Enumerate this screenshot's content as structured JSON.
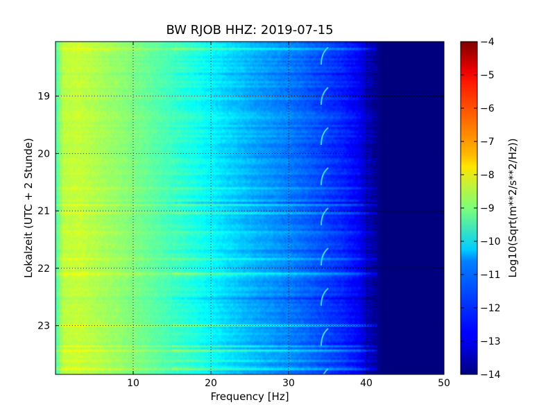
{
  "chart_data": {
    "type": "heatmap",
    "title": "BW RJOB HHZ: 2019-07-15",
    "xlabel": "Frequency [Hz]",
    "ylabel": "Lokalzeit (UTC + 2 Stunde)",
    "xlim": [
      0,
      50
    ],
    "ylim": [
      18.05,
      23.85
    ],
    "x_ticks": [
      10,
      20,
      30,
      40,
      50
    ],
    "x_tick_labels": [
      "10",
      "20",
      "30",
      "40",
      "50"
    ],
    "y_ticks": [
      19,
      20,
      21,
      22,
      23
    ],
    "y_tick_labels": [
      "19",
      "20",
      "21",
      "22",
      "23"
    ],
    "grid": true,
    "colorbar": {
      "label": "Log10(Sqrt(m**2/s**2/Hz))",
      "range": [
        -14,
        -4
      ],
      "ticks": [
        -4,
        -5,
        -6,
        -7,
        -8,
        -9,
        -10,
        -11,
        -12,
        -13,
        -14
      ],
      "tick_labels": [
        "−4",
        "−5",
        "−6",
        "−7",
        "−8",
        "−9",
        "−10",
        "−11",
        "−12",
        "−13",
        "−14"
      ],
      "colormap": "jet"
    },
    "spectral_profile": {
      "frequency_hz": [
        0,
        1,
        3,
        6,
        10,
        14,
        18,
        22,
        26,
        30,
        34,
        37,
        39,
        40,
        41,
        42,
        50
      ],
      "log10_amplitude": [
        -9.6,
        -8.4,
        -8.3,
        -8.6,
        -9.0,
        -9.5,
        -10.0,
        -10.6,
        -11.1,
        -11.5,
        -12.0,
        -12.4,
        -12.8,
        -13.3,
        -13.7,
        -14.0,
        -14.0
      ]
    },
    "narrowband_line_hz": 34.5,
    "series_colors": {
      "background_cutoff": "#00007f"
    }
  }
}
